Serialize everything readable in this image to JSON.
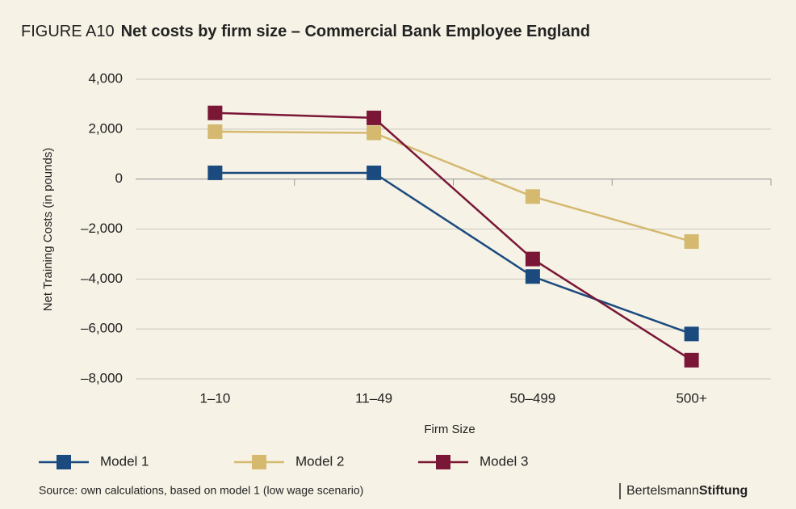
{
  "chart_data": {
    "type": "line",
    "figure_label": "FIGURE A10",
    "title": "Net costs by firm size – Commercial Bank Employee England",
    "x_label": "Firm Size",
    "y_label": "Net Training Costs (in pounds)",
    "categories": [
      "1–10",
      "11–49",
      "50–499",
      "500+"
    ],
    "series": [
      {
        "name": "Model 1",
        "color": "#1b4a7f",
        "values": [
          250,
          250,
          -3900,
          -6200
        ]
      },
      {
        "name": "Model 2",
        "color": "#d4b96e",
        "values": [
          1900,
          1850,
          -700,
          -2500
        ]
      },
      {
        "name": "Model 3",
        "color": "#7a1636",
        "values": [
          2650,
          2450,
          -3200,
          -7250
        ]
      }
    ],
    "ylim": [
      -8000,
      4000
    ],
    "yticks": [
      {
        "value": -8000,
        "label": "–8,000"
      },
      {
        "value": -6000,
        "label": "–6,000"
      },
      {
        "value": -4000,
        "label": "–4,000"
      },
      {
        "value": -2000,
        "label": "–2,000"
      },
      0,
      {
        "value": 2000,
        "label": "2,000"
      },
      {
        "value": 4000,
        "label": "4,000"
      }
    ],
    "grid": true,
    "legend": "bottom"
  },
  "source": "Source: own calculations, based on model 1 (low wage scenario)",
  "logo": {
    "light": "Bertelsmann",
    "bold": "Stiftung"
  }
}
